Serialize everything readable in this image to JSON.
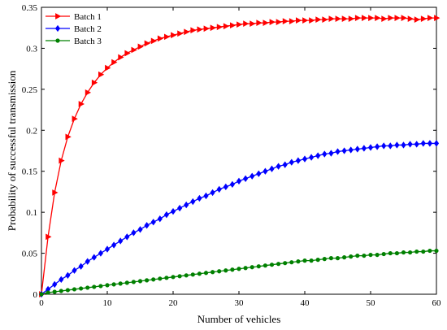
{
  "chart_data": {
    "type": "line",
    "xlabel": "Number of vehicles",
    "ylabel": "Probability of successful transmission",
    "xlim": [
      0,
      60
    ],
    "ylim": [
      0,
      0.35
    ],
    "xticks": [
      "0",
      "10",
      "20",
      "30",
      "40",
      "50",
      "60"
    ],
    "yticks": [
      "0",
      "0.05",
      "0.1",
      "0.15",
      "0.2",
      "0.25",
      "0.3",
      "0.35"
    ],
    "grid": false,
    "legend_position": "top-left",
    "x": [
      0,
      1,
      2,
      3,
      4,
      5,
      6,
      7,
      8,
      9,
      10,
      11,
      12,
      13,
      14,
      15,
      16,
      17,
      18,
      19,
      20,
      21,
      22,
      23,
      24,
      25,
      26,
      27,
      28,
      29,
      30,
      31,
      32,
      33,
      34,
      35,
      36,
      37,
      38,
      39,
      40,
      41,
      42,
      43,
      44,
      45,
      46,
      47,
      48,
      49,
      50,
      51,
      52,
      53,
      54,
      55,
      56,
      57,
      58,
      59,
      60
    ],
    "series": [
      {
        "name": "Batch 1",
        "color": "#ff0000",
        "marker": "triangle-right",
        "values": [
          0.0,
          0.07,
          0.124,
          0.163,
          0.192,
          0.214,
          0.232,
          0.246,
          0.258,
          0.268,
          0.276,
          0.283,
          0.289,
          0.294,
          0.298,
          0.302,
          0.306,
          0.309,
          0.312,
          0.314,
          0.316,
          0.318,
          0.32,
          0.322,
          0.323,
          0.324,
          0.325,
          0.326,
          0.327,
          0.328,
          0.329,
          0.33,
          0.33,
          0.331,
          0.331,
          0.332,
          0.332,
          0.333,
          0.333,
          0.334,
          0.334,
          0.334,
          0.335,
          0.335,
          0.336,
          0.336,
          0.336,
          0.336,
          0.337,
          0.337,
          0.337,
          0.337,
          0.336,
          0.337,
          0.337,
          0.337,
          0.336,
          0.335,
          0.336,
          0.337,
          0.337
        ]
      },
      {
        "name": "Batch 2",
        "color": "#0000ff",
        "marker": "diamond",
        "values": [
          0.0,
          0.006,
          0.012,
          0.018,
          0.023,
          0.029,
          0.034,
          0.04,
          0.045,
          0.05,
          0.055,
          0.06,
          0.065,
          0.07,
          0.075,
          0.079,
          0.084,
          0.088,
          0.092,
          0.097,
          0.101,
          0.105,
          0.109,
          0.113,
          0.117,
          0.12,
          0.124,
          0.128,
          0.131,
          0.134,
          0.138,
          0.141,
          0.144,
          0.147,
          0.15,
          0.153,
          0.156,
          0.158,
          0.161,
          0.163,
          0.165,
          0.167,
          0.169,
          0.171,
          0.172,
          0.174,
          0.175,
          0.176,
          0.177,
          0.178,
          0.179,
          0.18,
          0.181,
          0.181,
          0.182,
          0.182,
          0.183,
          0.183,
          0.184,
          0.184,
          0.184
        ]
      },
      {
        "name": "Batch 3",
        "color": "#008000",
        "marker": "circle",
        "values": [
          0.0,
          0.002,
          0.003,
          0.004,
          0.005,
          0.006,
          0.007,
          0.008,
          0.009,
          0.01,
          0.011,
          0.012,
          0.013,
          0.014,
          0.015,
          0.016,
          0.017,
          0.018,
          0.019,
          0.02,
          0.021,
          0.022,
          0.023,
          0.024,
          0.025,
          0.026,
          0.027,
          0.028,
          0.029,
          0.03,
          0.031,
          0.032,
          0.033,
          0.034,
          0.035,
          0.036,
          0.037,
          0.038,
          0.039,
          0.04,
          0.041,
          0.041,
          0.042,
          0.043,
          0.044,
          0.044,
          0.045,
          0.046,
          0.047,
          0.047,
          0.048,
          0.048,
          0.049,
          0.05,
          0.05,
          0.051,
          0.051,
          0.052,
          0.052,
          0.053,
          0.053
        ]
      }
    ]
  }
}
